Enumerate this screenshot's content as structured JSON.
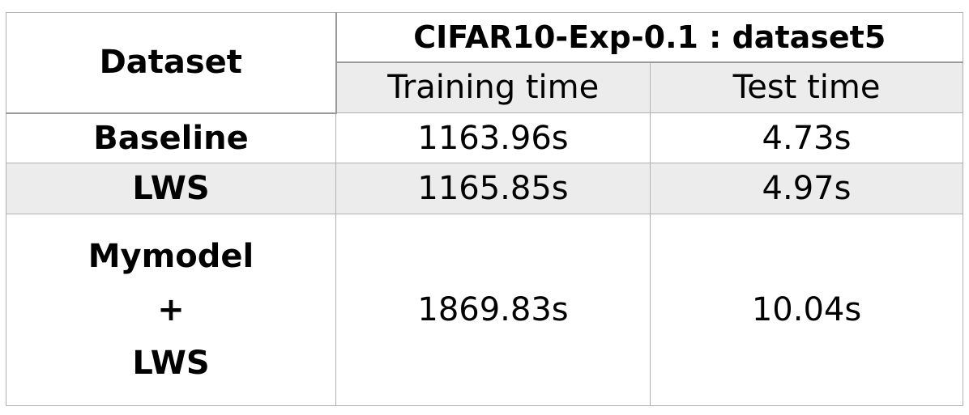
{
  "table": {
    "header": {
      "dataset_label": "Dataset",
      "group_label": "CIFAR10-Exp-0.1 : dataset5",
      "columns": [
        "Training time",
        "Test time"
      ]
    },
    "rows": [
      {
        "name_lines": [
          "Baseline"
        ],
        "training_time": "1163.96s",
        "test_time": "4.73s",
        "shaded": false
      },
      {
        "name_lines": [
          "LWS"
        ],
        "training_time": "1165.85s",
        "test_time": "4.97s",
        "shaded": true
      },
      {
        "name_lines": [
          "Mymodel",
          "+",
          "LWS"
        ],
        "training_time": "1869.83s",
        "test_time": "10.04s",
        "shaded": false
      }
    ]
  },
  "colors": {
    "border": "#b0b0b0",
    "shade": "#ececec",
    "text": "#000000"
  }
}
